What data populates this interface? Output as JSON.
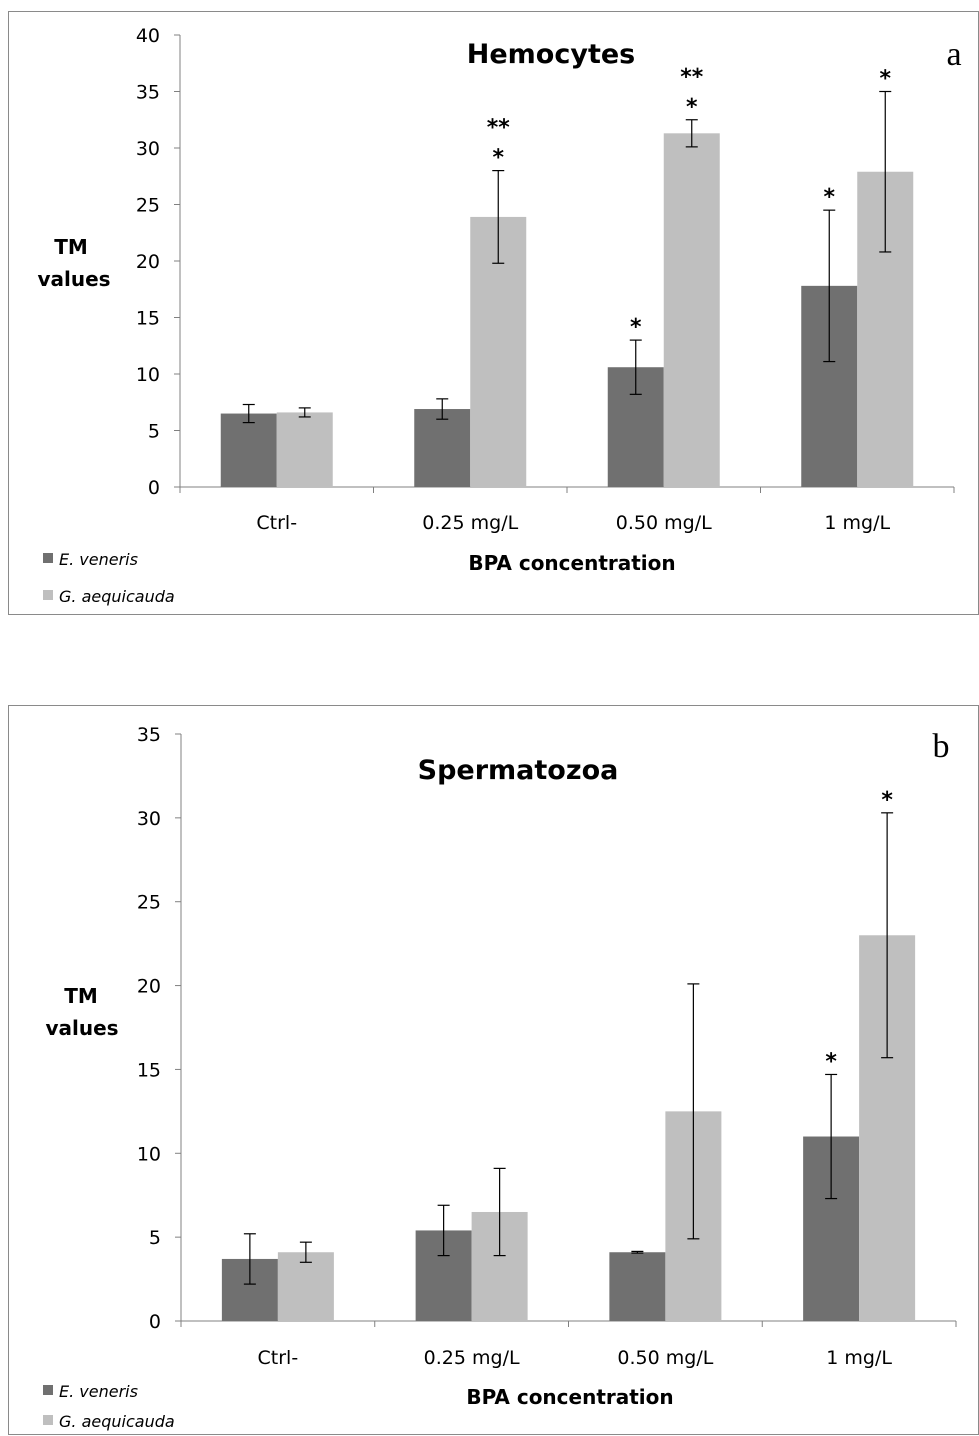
{
  "colors": {
    "series_1": "#707070",
    "series_2": "#bfbfbf",
    "axis": "#808080",
    "error_bar": "#000000"
  },
  "chart_data": [
    {
      "type": "bar",
      "panel_label": "a",
      "title": "Hemocytes",
      "xlabel": "BPA concentration",
      "ylabel_lines": [
        "TM",
        "values"
      ],
      "ylim": [
        0,
        40
      ],
      "yticks": [
        0,
        5,
        10,
        15,
        20,
        25,
        30,
        35,
        40
      ],
      "grid": false,
      "legend_position": "bottom-left",
      "categories": [
        "Ctrl-",
        "0.25 mg/L",
        "0.50 mg/L",
        "1 mg/L"
      ],
      "series": [
        {
          "name": "E. veneris",
          "values": [
            6.5,
            6.9,
            10.6,
            17.8
          ],
          "errors": [
            0.8,
            0.9,
            2.4,
            6.7
          ],
          "annotations": [
            [],
            [],
            [
              "*"
            ],
            [
              "*"
            ]
          ]
        },
        {
          "name": "G. aequicauda",
          "values": [
            6.6,
            23.9,
            31.3,
            27.9
          ],
          "errors": [
            0.4,
            4.1,
            1.2,
            7.1
          ],
          "annotations": [
            [],
            [
              "*",
              "**"
            ],
            [
              "*",
              "**"
            ],
            [
              "*"
            ]
          ]
        }
      ]
    },
    {
      "type": "bar",
      "panel_label": "b",
      "title": "Spermatozoa",
      "xlabel": "BPA concentration",
      "ylabel_lines": [
        "TM",
        "values"
      ],
      "ylim": [
        0,
        35
      ],
      "yticks": [
        0,
        5,
        10,
        15,
        20,
        25,
        30,
        35
      ],
      "grid": false,
      "legend_position": "bottom-left",
      "categories": [
        "Ctrl-",
        "0.25 mg/L",
        "0.50 mg/L",
        "1 mg/L"
      ],
      "series": [
        {
          "name": "E. veneris",
          "values": [
            3.7,
            5.4,
            4.1,
            11.0
          ],
          "errors": [
            1.5,
            1.5,
            0.05,
            3.7
          ],
          "annotations": [
            [],
            [],
            [],
            [
              "*"
            ]
          ]
        },
        {
          "name": "G. aequicauda",
          "values": [
            4.1,
            6.5,
            12.5,
            23.0
          ],
          "errors": [
            0.6,
            2.6,
            7.6,
            7.3
          ],
          "annotations": [
            [],
            [],
            [],
            [
              "*"
            ]
          ]
        }
      ]
    }
  ]
}
